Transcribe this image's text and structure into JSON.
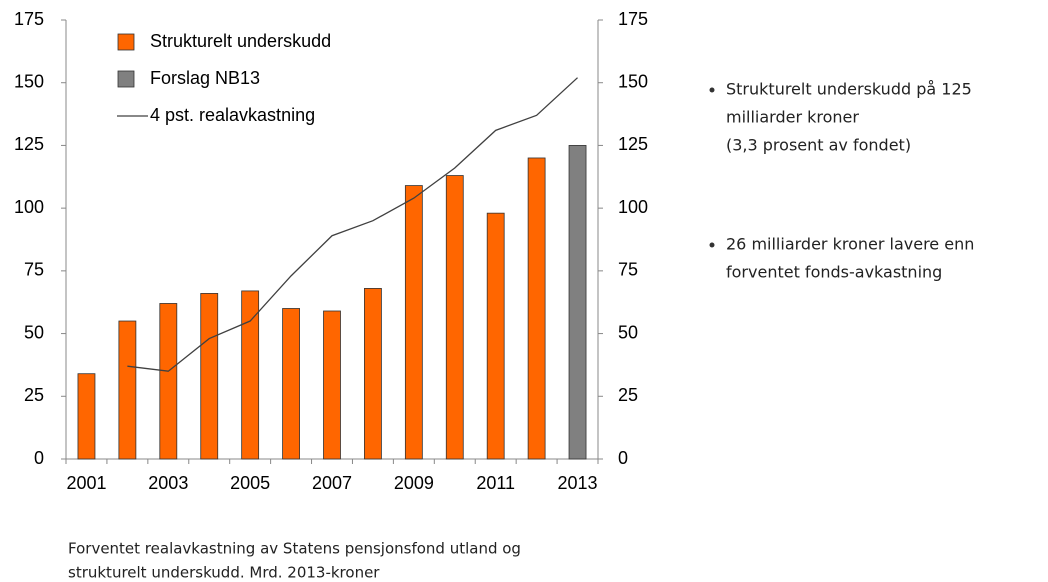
{
  "chart_data": {
    "type": "bar",
    "categories": [
      "2001",
      null,
      "2003",
      null,
      "2005",
      null,
      "2007",
      null,
      "2009",
      null,
      "2011",
      null,
      "2013"
    ],
    "series": [
      {
        "name": "Strukturelt underskudd",
        "color": "#ff6600",
        "values": [
          34,
          55,
          62,
          66,
          67,
          60,
          59,
          68,
          109,
          113,
          98,
          120,
          null
        ]
      },
      {
        "name": "Forslag NB13",
        "color": "#808080",
        "values": [
          null,
          null,
          null,
          null,
          null,
          null,
          null,
          null,
          null,
          null,
          null,
          null,
          125
        ]
      },
      {
        "name": "4 pst. realavkastning",
        "type": "line",
        "color": "#404040",
        "values": [
          null,
          37,
          35,
          48,
          55,
          73,
          89,
          95,
          104,
          116,
          131,
          137,
          152
        ]
      }
    ],
    "ylim": [
      0,
      175
    ],
    "yticks": [
      0,
      25,
      50,
      75,
      100,
      125,
      150,
      175
    ],
    "y2lim": [
      0,
      175
    ],
    "y2ticks": [
      0,
      25,
      50,
      75,
      100,
      125,
      150,
      175
    ],
    "legend": "upper left",
    "bullets": [
      [
        "Strukturelt underskudd på 125",
        "milliarder kroner",
        "(3,3 prosent av fondet)"
      ],
      [
        "26 milliarder kroner lavere enn",
        "forventet fonds-avkastning"
      ]
    ],
    "caption": [
      "Forventet realavkastning av Statens pensjonsfond utland og",
      "strukturelt underskudd. Mrd. 2013-kroner"
    ]
  }
}
